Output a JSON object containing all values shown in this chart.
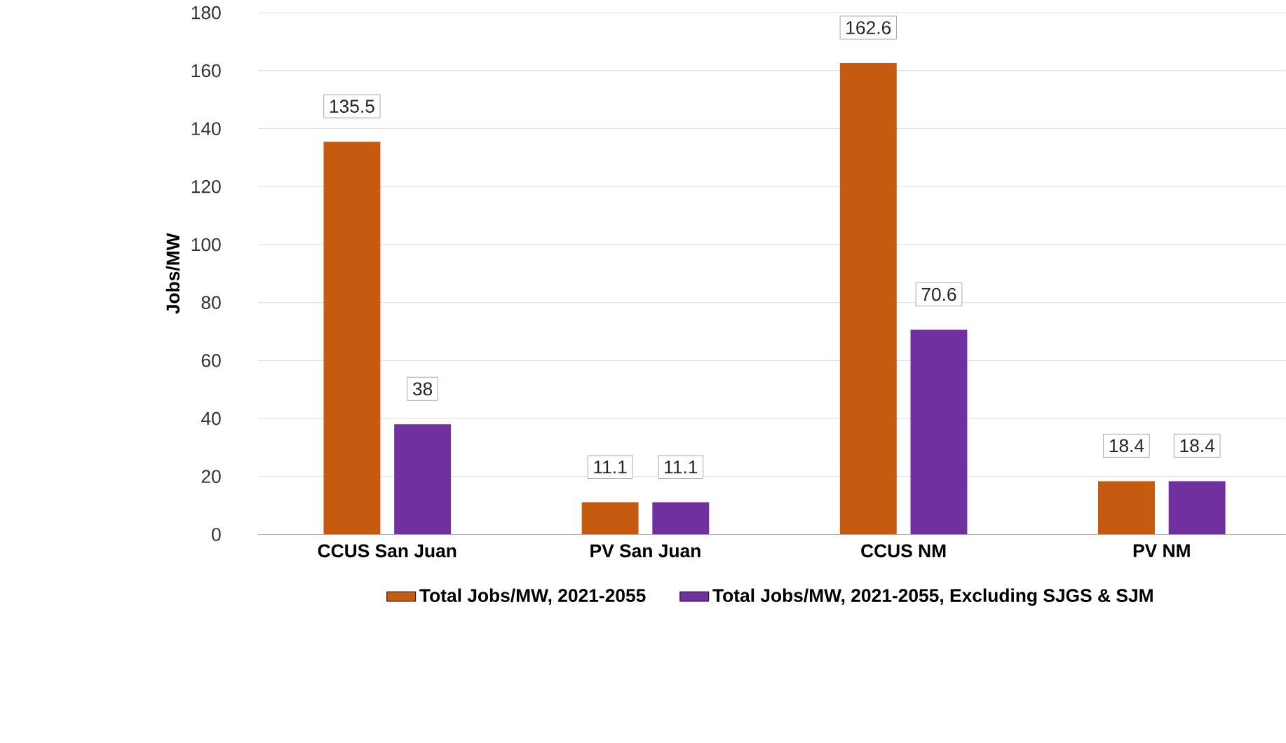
{
  "chart_data": {
    "type": "bar",
    "ylabel": "Jobs/MW",
    "categories": [
      "CCUS San Juan",
      "PV San Juan",
      "CCUS NM",
      "PV NM"
    ],
    "series": [
      {
        "name": "Total Jobs/MW, 2021-2055",
        "color": "#c55a11",
        "values": [
          135.5,
          11.1,
          162.6,
          18.4
        ]
      },
      {
        "name": "Total Jobs/MW, 2021-2055, Excluding SJGS & SJM",
        "color": "#7030a0",
        "values": [
          38,
          11.1,
          70.6,
          18.4
        ]
      }
    ],
    "ylim": [
      0,
      180
    ],
    "yticks": [
      0,
      20,
      40,
      60,
      80,
      100,
      120,
      140,
      160,
      180
    ],
    "grid": "y",
    "legend": "bottom",
    "data_labels": true
  }
}
